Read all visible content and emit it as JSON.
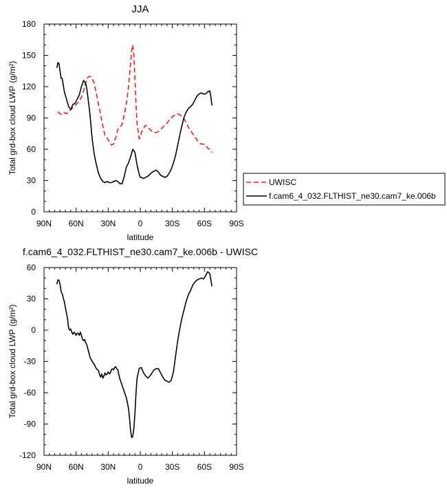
{
  "chart_data": [
    {
      "type": "line",
      "title": "JJA",
      "xlabel": "latitude",
      "ylabel": "Total grd-box cloud LWP",
      "ylabel_unit": "(g/m²)",
      "xlim": [
        90,
        -90
      ],
      "ylim": [
        0,
        180
      ],
      "x_ticks": [
        90,
        60,
        30,
        0,
        -30,
        -60,
        -90
      ],
      "x_tick_labels": [
        "90N",
        "60N",
        "30N",
        "0",
        "30S",
        "60S",
        "90S"
      ],
      "y_ticks": [
        0,
        30,
        60,
        90,
        120,
        150,
        180
      ],
      "y_tick_labels": [
        "0",
        "30",
        "60",
        "90",
        "120",
        "150",
        "180"
      ],
      "legend_position": "outside-right",
      "series": [
        {
          "name": "UWISC",
          "color": "#e8201e",
          "dash": "dashed",
          "x": [
            77,
            75,
            73,
            71,
            69,
            67,
            65,
            63,
            61,
            59,
            57,
            55,
            53,
            51,
            49,
            47,
            45,
            43,
            41,
            39,
            37,
            35,
            33,
            31,
            29,
            27,
            25,
            23,
            21,
            19,
            17,
            15,
            13,
            11,
            9,
            8,
            7,
            6,
            5,
            4,
            3,
            1,
            0,
            -1,
            -3,
            -5,
            -7,
            -9,
            -11,
            -13,
            -15,
            -17,
            -19,
            -21,
            -23,
            -25,
            -27,
            -29,
            -31,
            -33,
            -35,
            -37,
            -39,
            -41,
            -43,
            -45,
            -47,
            -49,
            -51,
            -53,
            -55,
            -57,
            -59,
            -61,
            -63,
            -65,
            -67
          ],
          "y": [
            96,
            94,
            93,
            95,
            94,
            96,
            98,
            100,
            102,
            104,
            106,
            110,
            116,
            124,
            129,
            130,
            128,
            123,
            113,
            103,
            93,
            82,
            73,
            71,
            67,
            64,
            65,
            71,
            79,
            81,
            84,
            93,
            104,
            120,
            143,
            155,
            160,
            150,
            128,
            103,
            85,
            70,
            71,
            76,
            80,
            83,
            81,
            79,
            77,
            76,
            76,
            77,
            79,
            81,
            83,
            85,
            88,
            90,
            92,
            93,
            94,
            93,
            91,
            89,
            85,
            81,
            78,
            75,
            72,
            69,
            66,
            65,
            65,
            64,
            61,
            60,
            57
          ]
        },
        {
          "name": "f.cam6_4_032.FLTHIST_ne30.cam7_ke.006b",
          "color": "#000000",
          "dash": "solid",
          "x": [
            78,
            77,
            76,
            75,
            74,
            73,
            71,
            69,
            67,
            65,
            63,
            61,
            59,
            57,
            55,
            53,
            51,
            50,
            49,
            47,
            45,
            43,
            41,
            39,
            37,
            35,
            33,
            31,
            29,
            27,
            25,
            23,
            21,
            19,
            17,
            15,
            13,
            11,
            9,
            7,
            5,
            3,
            1,
            0,
            -1,
            -3,
            -5,
            -7,
            -9,
            -11,
            -13,
            -15,
            -17,
            -19,
            -21,
            -23,
            -25,
            -27,
            -29,
            -31,
            -33,
            -35,
            -37,
            -39,
            -41,
            -43,
            -45,
            -47,
            -49,
            -51,
            -53,
            -55,
            -57,
            -59,
            -61,
            -63,
            -65,
            -66,
            -67
          ],
          "y": [
            138,
            143,
            142,
            135,
            128,
            128,
            115,
            108,
            101,
            98,
            103,
            104,
            108,
            112,
            120,
            126,
            123,
            118,
            110,
            93,
            70,
            55,
            45,
            37,
            32,
            29,
            28,
            29,
            28,
            28,
            29,
            30,
            29,
            27,
            27,
            34,
            43,
            47,
            53,
            60,
            57,
            45,
            36,
            33,
            33,
            32,
            33,
            34,
            36,
            38,
            39,
            40,
            38,
            35,
            34,
            33,
            34,
            37,
            41,
            47,
            54,
            64,
            74,
            83,
            91,
            96,
            99,
            101,
            103,
            107,
            111,
            113,
            114,
            113,
            113,
            115,
            116,
            110,
            102
          ]
        }
      ]
    },
    {
      "type": "line",
      "title": "f.cam6_4_032.FLTHIST_ne30.cam7_ke.006b - UWISC",
      "xlabel": "latitude",
      "ylabel": "Total grd-box cloud LWP",
      "ylabel_unit": "(g/m²)",
      "xlim": [
        90,
        -90
      ],
      "ylim": [
        -120,
        60
      ],
      "x_ticks": [
        90,
        60,
        30,
        0,
        -30,
        -60,
        -90
      ],
      "x_tick_labels": [
        "90N",
        "60N",
        "30N",
        "0",
        "30S",
        "60S",
        "90S"
      ],
      "y_ticks": [
        -120,
        -90,
        -60,
        -30,
        0,
        30,
        60
      ],
      "y_tick_labels": [
        "-120",
        "-90",
        "-60",
        "-30",
        "0",
        "30",
        "60"
      ],
      "series": [
        {
          "color": "#000000",
          "dash": "solid",
          "x": [
            78,
            77,
            76,
            75,
            74,
            73,
            71,
            69,
            68,
            67,
            66,
            65,
            64,
            63,
            62,
            61,
            60,
            59,
            58,
            57,
            56,
            55,
            54,
            53,
            52,
            51,
            50,
            49,
            47,
            45,
            43,
            41,
            39,
            38,
            37,
            36,
            35,
            34,
            33,
            32,
            31,
            30,
            29,
            28,
            27,
            26,
            25,
            24,
            23,
            22,
            21,
            20,
            19,
            18,
            17,
            15,
            13,
            11,
            10,
            9,
            8,
            7,
            6,
            5,
            4,
            3,
            1,
            0,
            -1,
            -3,
            -5,
            -7,
            -9,
            -11,
            -13,
            -15,
            -17,
            -19,
            -21,
            -23,
            -25,
            -27,
            -29,
            -31,
            -33,
            -35,
            -37,
            -39,
            -41,
            -43,
            -45,
            -47,
            -49,
            -51,
            -53,
            -55,
            -57,
            -59,
            -61,
            -63,
            -65,
            -66,
            -67
          ],
          "y": [
            44,
            48,
            48,
            44,
            37,
            35,
            27,
            16,
            11,
            2,
            0,
            1,
            -2,
            -4,
            -2,
            -3,
            -5,
            -3,
            -3,
            -5,
            -2,
            -5,
            -9,
            -10,
            -9,
            -12,
            -14,
            -18,
            -26,
            -30,
            -33,
            -37,
            -39,
            -43,
            -45,
            -42,
            -46,
            -44,
            -41,
            -43,
            -42,
            -40,
            -42,
            -41,
            -38,
            -37,
            -38,
            -36,
            -35,
            -37,
            -38,
            -43,
            -47,
            -50,
            -53,
            -59,
            -65,
            -75,
            -85,
            -97,
            -103,
            -102,
            -94,
            -80,
            -60,
            -46,
            -37,
            -36,
            -36,
            -41,
            -44,
            -46,
            -44,
            -41,
            -38,
            -37,
            -37,
            -41,
            -45,
            -48,
            -49,
            -50,
            -48,
            -40,
            -25,
            -10,
            2,
            12,
            20,
            28,
            34,
            38,
            43,
            46,
            48,
            49,
            50,
            49,
            52,
            56,
            54,
            48,
            42
          ]
        }
      ]
    }
  ]
}
